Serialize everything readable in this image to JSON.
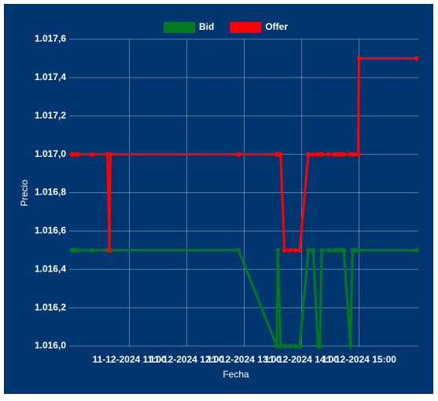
{
  "chart_data": {
    "type": "line",
    "x_label": "Fecha",
    "y_label": "Precio",
    "x": [
      "11-12-2024 10:00",
      "11-12-2024 10:02",
      "11-12-2024 10:06",
      "11-12-2024 10:21",
      "11-12-2024 10:37",
      "11-12-2024 10:39",
      "11-12-2024 10:40",
      "11-12-2024 12:54",
      "11-12-2024 13:34",
      "11-12-2024 13:35",
      "11-12-2024 13:38",
      "11-12-2024 13:42",
      "11-12-2024 13:48",
      "11-12-2024 13:53",
      "11-12-2024 13:58",
      "11-12-2024 14:07",
      "11-12-2024 14:12",
      "11-12-2024 14:17",
      "11-12-2024 14:19",
      "11-12-2024 14:21",
      "11-12-2024 14:28",
      "11-12-2024 14:34",
      "11-12-2024 14:36",
      "11-12-2024 14:39",
      "11-12-2024 14:41",
      "11-12-2024 14:44",
      "11-12-2024 14:51",
      "11-12-2024 14:53",
      "11-12-2024 14:55",
      "11-12-2024 14:59",
      "11-12-2024 15:00",
      "11-12-2024 16:00"
    ],
    "series": [
      {
        "name": "Bid",
        "color": "#007a1f",
        "values": [
          1.0165,
          1.0165,
          1.0165,
          1.0165,
          1.0165,
          1.0165,
          1.0165,
          1.0165,
          1.016,
          1.0165,
          1.016,
          1.016,
          1.016,
          1.016,
          1.016,
          1.0165,
          1.0165,
          1.016,
          1.016,
          1.0165,
          1.0165,
          1.0165,
          1.0165,
          1.0165,
          1.0165,
          1.0165,
          1.016,
          1.0165,
          1.0165,
          1.0165,
          1.0165,
          1.0165
        ]
      },
      {
        "name": "Offer",
        "color": "#ff0000",
        "values": [
          1.017,
          1.017,
          1.017,
          1.017,
          1.017,
          1.0165,
          1.017,
          1.017,
          1.017,
          1.017,
          1.017,
          1.0165,
          1.0165,
          1.0165,
          1.0165,
          1.017,
          1.017,
          1.017,
          1.017,
          1.017,
          1.017,
          1.017,
          1.017,
          1.017,
          1.017,
          1.017,
          1.017,
          1.017,
          1.017,
          1.017,
          1.0175,
          1.0175
        ]
      }
    ],
    "xlim": [
      "11-12-2024 09:57",
      "11-12-2024 16:02"
    ],
    "xticks": [
      "11-12-2024 11:00",
      "11-12-2024 12:00",
      "11-12-2024 13:00",
      "11-12-2024 14:00",
      "11-12-2024 15:00"
    ],
    "ylim": [
      1.016,
      1.0176
    ],
    "yticks": [
      {
        "value": 1.016,
        "label": "1.016,0"
      },
      {
        "value": 1.0162,
        "label": "1.016,2"
      },
      {
        "value": 1.0164,
        "label": "1.016,4"
      },
      {
        "value": 1.0166,
        "label": "1.016,6"
      },
      {
        "value": 1.0168,
        "label": "1.016,8"
      },
      {
        "value": 1.017,
        "label": "1.017,0"
      },
      {
        "value": 1.0172,
        "label": "1.017,2"
      },
      {
        "value": 1.0174,
        "label": "1.017,4"
      },
      {
        "value": 1.0176,
        "label": "1.017,6"
      }
    ],
    "grid": true
  }
}
